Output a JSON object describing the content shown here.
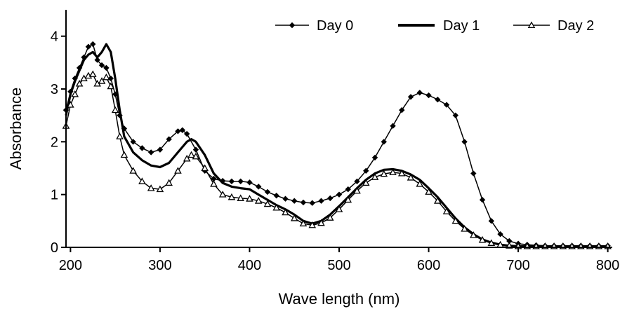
{
  "chart_data": {
    "type": "line",
    "title": "",
    "xlabel": "Wave length (nm)",
    "ylabel": "Absorbance",
    "xlim": [
      195,
      805
    ],
    "ylim": [
      0,
      4.5
    ],
    "xticks": [
      200,
      300,
      400,
      500,
      600,
      700,
      800
    ],
    "yticks": [
      0,
      1,
      2,
      3,
      4
    ],
    "x_tick_labels": [
      "200",
      "300",
      "400",
      "500",
      "600",
      "700",
      "800"
    ],
    "y_tick_labels": [
      "0",
      "1",
      "2",
      "3",
      "4"
    ],
    "grid": false,
    "legend_position": "top",
    "color": "#000000",
    "series": [
      {
        "name": "Day 0",
        "marker": "diamond",
        "x": [
          195,
          200,
          205,
          210,
          215,
          220,
          225,
          230,
          235,
          240,
          245,
          250,
          255,
          260,
          270,
          280,
          290,
          300,
          310,
          320,
          325,
          330,
          340,
          350,
          360,
          370,
          380,
          390,
          400,
          410,
          420,
          430,
          440,
          450,
          460,
          470,
          480,
          490,
          500,
          510,
          520,
          530,
          540,
          550,
          560,
          570,
          580,
          590,
          600,
          610,
          620,
          630,
          640,
          650,
          660,
          670,
          680,
          690,
          700,
          710,
          720,
          730,
          740,
          750,
          760,
          770,
          780,
          790,
          800
        ],
        "y": [
          2.6,
          2.95,
          3.2,
          3.4,
          3.6,
          3.8,
          3.85,
          3.55,
          3.45,
          3.4,
          3.2,
          2.9,
          2.5,
          2.25,
          2.0,
          1.88,
          1.8,
          1.85,
          2.05,
          2.2,
          2.22,
          2.15,
          1.85,
          1.45,
          1.3,
          1.26,
          1.25,
          1.25,
          1.23,
          1.15,
          1.05,
          0.98,
          0.92,
          0.88,
          0.85,
          0.84,
          0.88,
          0.93,
          1.0,
          1.1,
          1.25,
          1.45,
          1.7,
          2.0,
          2.3,
          2.6,
          2.85,
          2.93,
          2.88,
          2.8,
          2.7,
          2.5,
          2.0,
          1.4,
          0.9,
          0.5,
          0.25,
          0.12,
          0.07,
          0.05,
          0.04,
          0.03,
          0.03,
          0.03,
          0.03,
          0.03,
          0.03,
          0.03,
          0.03
        ]
      },
      {
        "name": "Day 1",
        "marker": "none",
        "x": [
          195,
          200,
          205,
          210,
          215,
          220,
          225,
          230,
          235,
          240,
          245,
          250,
          255,
          260,
          270,
          280,
          290,
          300,
          310,
          320,
          330,
          335,
          340,
          350,
          360,
          370,
          380,
          390,
          400,
          410,
          420,
          430,
          440,
          450,
          460,
          470,
          480,
          490,
          500,
          510,
          520,
          530,
          540,
          550,
          560,
          570,
          580,
          590,
          600,
          610,
          620,
          630,
          640,
          650,
          660,
          670,
          680,
          690,
          700,
          710,
          720,
          730,
          740,
          750,
          760,
          770,
          780,
          790,
          800
        ],
        "y": [
          2.5,
          2.9,
          3.15,
          3.35,
          3.55,
          3.65,
          3.7,
          3.6,
          3.7,
          3.85,
          3.7,
          3.2,
          2.6,
          2.1,
          1.8,
          1.65,
          1.55,
          1.52,
          1.6,
          1.8,
          2.0,
          2.05,
          2.0,
          1.75,
          1.4,
          1.22,
          1.15,
          1.12,
          1.1,
          1.0,
          0.9,
          0.8,
          0.72,
          0.62,
          0.5,
          0.45,
          0.5,
          0.62,
          0.78,
          0.95,
          1.12,
          1.28,
          1.4,
          1.47,
          1.48,
          1.45,
          1.38,
          1.28,
          1.12,
          0.95,
          0.75,
          0.55,
          0.38,
          0.25,
          0.15,
          0.09,
          0.05,
          0.03,
          0.02,
          0.02,
          0.02,
          0.02,
          0.02,
          0.02,
          0.02,
          0.02,
          0.02,
          0.02,
          0.02
        ]
      },
      {
        "name": "Day 2",
        "marker": "triangle",
        "x": [
          195,
          200,
          205,
          210,
          215,
          220,
          225,
          230,
          235,
          240,
          245,
          250,
          255,
          260,
          270,
          280,
          290,
          300,
          310,
          320,
          330,
          335,
          340,
          350,
          360,
          370,
          380,
          390,
          400,
          410,
          420,
          430,
          440,
          450,
          460,
          470,
          480,
          490,
          500,
          510,
          520,
          530,
          540,
          550,
          560,
          570,
          580,
          590,
          600,
          610,
          620,
          630,
          640,
          650,
          660,
          670,
          680,
          690,
          700,
          710,
          720,
          730,
          740,
          750,
          760,
          770,
          780,
          790,
          800
        ],
        "y": [
          2.3,
          2.7,
          2.9,
          3.1,
          3.2,
          3.25,
          3.28,
          3.1,
          3.15,
          3.22,
          3.05,
          2.6,
          2.1,
          1.75,
          1.45,
          1.25,
          1.12,
          1.1,
          1.22,
          1.45,
          1.68,
          1.75,
          1.72,
          1.5,
          1.2,
          1.0,
          0.95,
          0.93,
          0.92,
          0.88,
          0.82,
          0.75,
          0.66,
          0.55,
          0.45,
          0.42,
          0.46,
          0.56,
          0.72,
          0.9,
          1.07,
          1.22,
          1.33,
          1.39,
          1.42,
          1.4,
          1.32,
          1.2,
          1.05,
          0.88,
          0.68,
          0.5,
          0.35,
          0.23,
          0.14,
          0.08,
          0.05,
          0.03,
          0.02,
          0.02,
          0.02,
          0.02,
          0.02,
          0.02,
          0.02,
          0.02,
          0.02,
          0.02,
          0.02
        ]
      }
    ]
  }
}
